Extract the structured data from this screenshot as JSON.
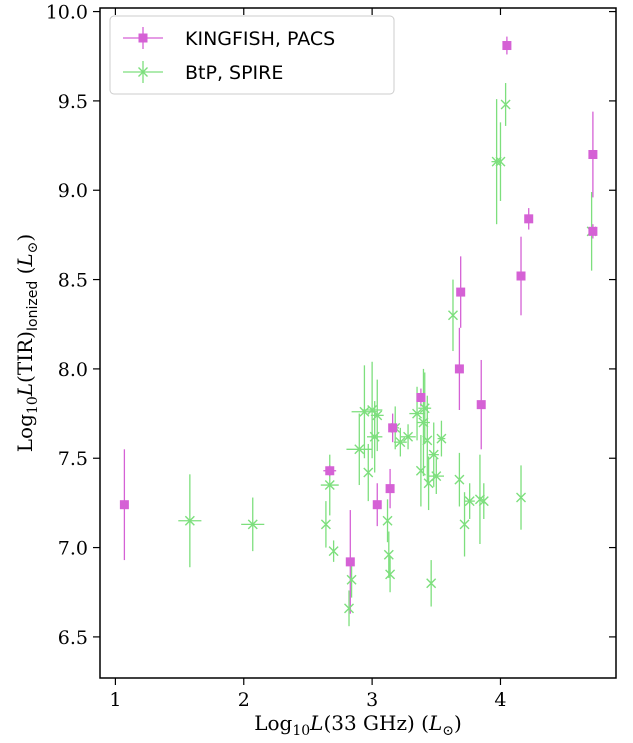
{
  "chart_data": {
    "type": "scatter",
    "xlim": [
      0.88,
      4.9
    ],
    "ylim": [
      6.27,
      10.02
    ],
    "x_ticks": [
      1,
      2,
      3,
      4
    ],
    "x_tick_labels": [
      "1",
      "2",
      "3",
      "4"
    ],
    "y_ticks": [
      6.5,
      7.0,
      7.5,
      8.0,
      8.5,
      9.0,
      9.5,
      10.0
    ],
    "y_tick_labels": [
      "6.5",
      "7.0",
      "7.5",
      "8.0",
      "8.5",
      "9.0",
      "9.5",
      "10.0"
    ],
    "xlabel": {
      "pre": "Log",
      "sub": "10",
      "italic": "L",
      "post": "(33 GHz) (",
      "italic2": "L",
      "sun": "⊙",
      "close": ")"
    },
    "ylabel": {
      "pre": "Log",
      "sub": "10",
      "italic": "L",
      "post": "(TIR)",
      "sub2": "Ionized",
      "post2": " (",
      "italic2": "L",
      "sun": "⊙",
      "close": ")"
    },
    "legend_position": "upper-left",
    "series": [
      {
        "name": "KINGFISH, PACS",
        "marker": "square",
        "color": "#d561d5",
        "points": [
          {
            "x": 1.07,
            "y": 7.24,
            "xerr": 0.0,
            "yerr": 0.31
          },
          {
            "x": 2.67,
            "y": 7.43,
            "xerr": 0.05,
            "yerr": 0.03
          },
          {
            "x": 2.83,
            "y": 6.92,
            "xerr": 0.0,
            "yerr": 0.29
          },
          {
            "x": 3.04,
            "y": 7.24,
            "xerr": 0.0,
            "yerr": 0.12
          },
          {
            "x": 3.14,
            "y": 7.33,
            "xerr": 0.0,
            "yerr": 0.11
          },
          {
            "x": 3.16,
            "y": 7.67,
            "xerr": 0.0,
            "yerr": 0.08
          },
          {
            "x": 3.38,
            "y": 7.84,
            "xerr": 0.0,
            "yerr": 0.05
          },
          {
            "x": 3.68,
            "y": 8.0,
            "xerr": 0.0,
            "yerr": 0.23
          },
          {
            "x": 3.69,
            "y": 8.43,
            "xerr": 0.0,
            "yerr": 0.2
          },
          {
            "x": 3.85,
            "y": 7.8,
            "xerr": 0.0,
            "yerr": 0.25
          },
          {
            "x": 4.05,
            "y": 9.81,
            "xerr": 0.0,
            "yerr": 0.05
          },
          {
            "x": 4.16,
            "y": 8.52,
            "xerr": 0.0,
            "yerr": 0.22
          },
          {
            "x": 4.22,
            "y": 8.84,
            "xerr": 0.0,
            "yerr": 0.06
          },
          {
            "x": 4.72,
            "y": 9.2,
            "xerr": 0.0,
            "yerr": 0.24
          },
          {
            "x": 4.72,
            "y": 8.77,
            "xerr": 0.0,
            "yerr": 0.04
          }
        ]
      },
      {
        "name": "BtP, SPIRE",
        "marker": "x",
        "color": "#7ddf7d",
        "points": [
          {
            "x": 1.58,
            "y": 7.15,
            "xerr": 0.09,
            "yerr": 0.26
          },
          {
            "x": 2.07,
            "y": 7.13,
            "xerr": 0.09,
            "yerr": 0.15
          },
          {
            "x": 2.64,
            "y": 7.13,
            "xerr": 0.0,
            "yerr": 0.13
          },
          {
            "x": 2.67,
            "y": 7.35,
            "xerr": 0.07,
            "yerr": 0.17
          },
          {
            "x": 2.7,
            "y": 6.98,
            "xerr": 0.0,
            "yerr": 0.06
          },
          {
            "x": 2.82,
            "y": 6.66,
            "xerr": 0.0,
            "yerr": 0.1
          },
          {
            "x": 2.84,
            "y": 6.82,
            "xerr": 0.0,
            "yerr": 0.1
          },
          {
            "x": 2.9,
            "y": 7.55,
            "xerr": 0.1,
            "yerr": 0.2
          },
          {
            "x": 2.94,
            "y": 7.76,
            "xerr": 0.1,
            "yerr": 0.26
          },
          {
            "x": 2.97,
            "y": 7.42,
            "xerr": 0.0,
            "yerr": 0.16
          },
          {
            "x": 3.0,
            "y": 7.77,
            "xerr": 0.08,
            "yerr": 0.27
          },
          {
            "x": 3.02,
            "y": 7.62,
            "xerr": 0.06,
            "yerr": 0.2
          },
          {
            "x": 3.04,
            "y": 7.74,
            "xerr": 0.05,
            "yerr": 0.2
          },
          {
            "x": 3.12,
            "y": 7.15,
            "xerr": 0.0,
            "yerr": 0.12
          },
          {
            "x": 3.13,
            "y": 6.96,
            "xerr": 0.0,
            "yerr": 0.13
          },
          {
            "x": 3.14,
            "y": 6.85,
            "xerr": 0.0,
            "yerr": 0.1
          },
          {
            "x": 3.18,
            "y": 7.67,
            "xerr": 0.03,
            "yerr": 0.12
          },
          {
            "x": 3.22,
            "y": 7.59,
            "xerr": 0.05,
            "yerr": 0.08
          },
          {
            "x": 3.28,
            "y": 7.62,
            "xerr": 0.06,
            "yerr": 0.07
          },
          {
            "x": 3.35,
            "y": 7.75,
            "xerr": 0.06,
            "yerr": 0.15
          },
          {
            "x": 3.38,
            "y": 7.43,
            "xerr": 0.0,
            "yerr": 0.2
          },
          {
            "x": 3.4,
            "y": 7.7,
            "xerr": 0.05,
            "yerr": 0.3
          },
          {
            "x": 3.41,
            "y": 7.78,
            "xerr": 0.05,
            "yerr": 0.2
          },
          {
            "x": 3.43,
            "y": 7.6,
            "xerr": 0.0,
            "yerr": 0.25
          },
          {
            "x": 3.44,
            "y": 7.36,
            "xerr": 0.0,
            "yerr": 0.15
          },
          {
            "x": 3.46,
            "y": 6.8,
            "xerr": 0.0,
            "yerr": 0.13
          },
          {
            "x": 3.48,
            "y": 7.52,
            "xerr": 0.04,
            "yerr": 0.18
          },
          {
            "x": 3.5,
            "y": 7.4,
            "xerr": 0.06,
            "yerr": 0.1
          },
          {
            "x": 3.54,
            "y": 7.61,
            "xerr": 0.03,
            "yerr": 0.1
          },
          {
            "x": 3.63,
            "y": 8.3,
            "xerr": 0.0,
            "yerr": 0.2
          },
          {
            "x": 3.68,
            "y": 7.38,
            "xerr": 0.0,
            "yerr": 0.15
          },
          {
            "x": 3.72,
            "y": 7.13,
            "xerr": 0.0,
            "yerr": 0.18
          },
          {
            "x": 3.76,
            "y": 7.26,
            "xerr": 0.04,
            "yerr": 0.1
          },
          {
            "x": 3.84,
            "y": 7.27,
            "xerr": 0.0,
            "yerr": 0.25
          },
          {
            "x": 3.87,
            "y": 7.26,
            "xerr": 0.0,
            "yerr": 0.1
          },
          {
            "x": 3.97,
            "y": 9.16,
            "xerr": 0.04,
            "yerr": 0.35
          },
          {
            "x": 4.0,
            "y": 9.16,
            "xerr": 0.0,
            "yerr": 0.22
          },
          {
            "x": 4.04,
            "y": 9.48,
            "xerr": 0.0,
            "yerr": 0.12
          },
          {
            "x": 4.16,
            "y": 7.28,
            "xerr": 0.0,
            "yerr": 0.18
          },
          {
            "x": 4.71,
            "y": 8.77,
            "xerr": 0.0,
            "yerr": 0.22
          }
        ]
      }
    ]
  }
}
